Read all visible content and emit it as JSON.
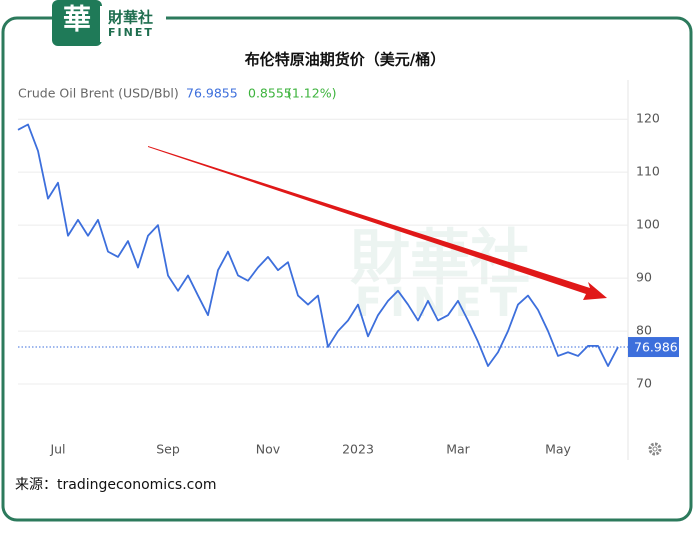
{
  "logo": {
    "name": "財華社",
    "brand": "FINET",
    "icon": "華"
  },
  "source": "来源：tradingeconomics.com",
  "chart_data": {
    "type": "line",
    "title": "布伦特原油期货价（美元/桶）",
    "series": [
      {
        "name": "Crude Oil Brent (USD/Bbl)",
        "color": "#3d6fdc",
        "values": [
          118,
          119,
          114,
          105,
          108,
          98,
          101,
          98,
          101,
          95,
          94,
          97,
          92,
          98,
          100,
          90.5,
          87.6,
          90.5,
          86.7,
          83,
          91.5,
          95,
          90.5,
          89.5,
          92,
          94,
          91.5,
          93,
          86.7,
          85,
          86.7,
          77,
          80,
          82,
          85,
          79,
          83,
          85.7,
          87.6,
          85,
          82,
          85.7,
          82,
          83,
          85.7,
          82,
          78,
          73.4,
          76,
          80,
          85,
          86.7,
          84,
          80,
          75.3,
          76,
          75.3,
          77.2,
          77.2,
          73.4,
          76.9855
        ]
      }
    ],
    "categories": [
      null,
      null,
      null,
      null,
      "Jul",
      null,
      null,
      null,
      null,
      null,
      null,
      null,
      null,
      null,
      null,
      "Sep",
      null,
      null,
      null,
      null,
      null,
      null,
      null,
      null,
      null,
      "Nov",
      null,
      null,
      null,
      null,
      null,
      null,
      null,
      null,
      "2023",
      null,
      null,
      null,
      null,
      null,
      null,
      null,
      null,
      null,
      "Mar",
      null,
      null,
      null,
      null,
      null,
      null,
      null,
      null,
      null,
      "May",
      null,
      null,
      null,
      null,
      null,
      null
    ],
    "change": 0.8555,
    "change_pct": "(1.12%)",
    "last_label": "76.986",
    "ylim": [
      60,
      127.4
    ],
    "yticks": [
      70,
      80,
      90,
      100,
      110,
      120
    ],
    "grid": true
  }
}
